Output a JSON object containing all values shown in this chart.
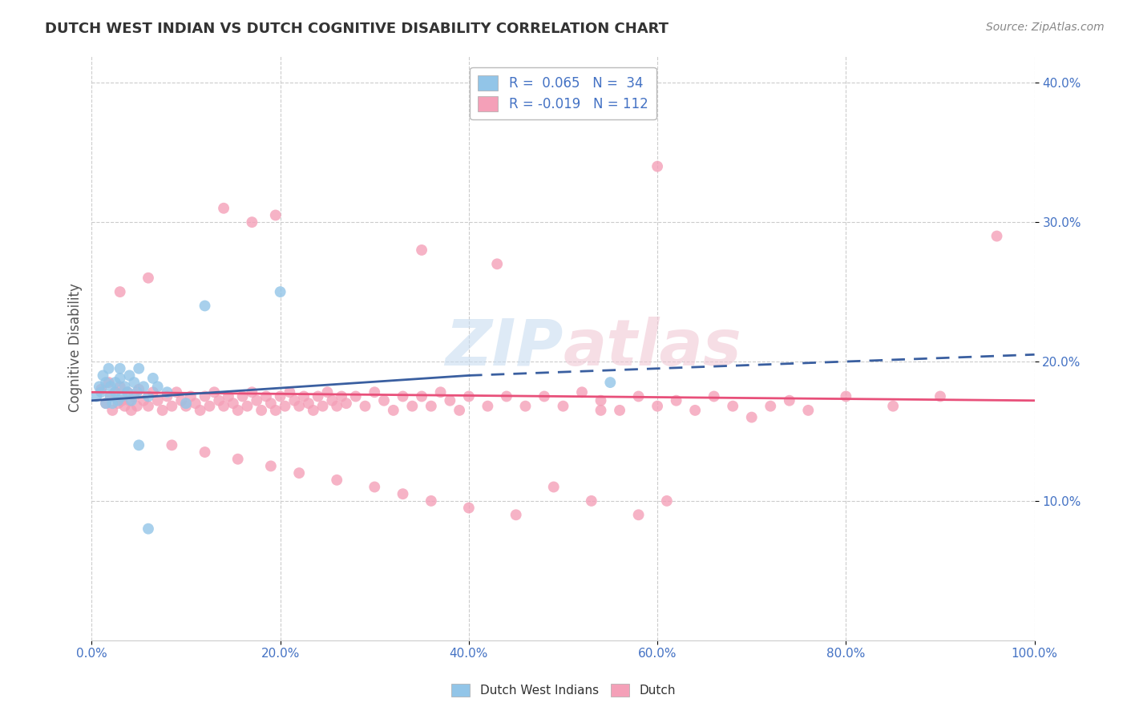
{
  "title": "DUTCH WEST INDIAN VS DUTCH COGNITIVE DISABILITY CORRELATION CHART",
  "source": "Source: ZipAtlas.com",
  "ylabel": "Cognitive Disability",
  "xlim": [
    0.0,
    1.0
  ],
  "ylim": [
    0.0,
    0.42
  ],
  "xticks": [
    0.0,
    0.2,
    0.4,
    0.6,
    0.8,
    1.0
  ],
  "xtick_labels": [
    "0.0%",
    "20.0%",
    "40.0%",
    "60.0%",
    "80.0%",
    "100.0%"
  ],
  "yticks": [
    0.1,
    0.2,
    0.3,
    0.4
  ],
  "ytick_labels": [
    "10.0%",
    "20.0%",
    "30.0%",
    "40.0%"
  ],
  "color_blue": "#92C5E8",
  "color_pink": "#F4A0B8",
  "trendline_blue": "#3A5FA0",
  "trendline_pink": "#E8507A",
  "watermark_color": "#D8E8F0",
  "watermark_color2": "#F0D8E0",
  "background_color": "#FFFFFF",
  "grid_color": "#CCCCCC",
  "title_color": "#333333",
  "axis_label_color": "#555555",
  "tick_color": "#4472C4",
  "source_color": "#888888",
  "blue_scatter": [
    [
      0.005,
      0.175
    ],
    [
      0.008,
      0.182
    ],
    [
      0.01,
      0.178
    ],
    [
      0.012,
      0.19
    ],
    [
      0.015,
      0.17
    ],
    [
      0.015,
      0.185
    ],
    [
      0.018,
      0.195
    ],
    [
      0.02,
      0.175
    ],
    [
      0.02,
      0.182
    ],
    [
      0.022,
      0.17
    ],
    [
      0.025,
      0.185
    ],
    [
      0.025,
      0.178
    ],
    [
      0.028,
      0.172
    ],
    [
      0.03,
      0.188
    ],
    [
      0.03,
      0.195
    ],
    [
      0.032,
      0.175
    ],
    [
      0.035,
      0.182
    ],
    [
      0.038,
      0.178
    ],
    [
      0.04,
      0.19
    ],
    [
      0.042,
      0.172
    ],
    [
      0.045,
      0.185
    ],
    [
      0.048,
      0.178
    ],
    [
      0.05,
      0.195
    ],
    [
      0.055,
      0.182
    ],
    [
      0.06,
      0.175
    ],
    [
      0.065,
      0.188
    ],
    [
      0.07,
      0.182
    ],
    [
      0.08,
      0.178
    ],
    [
      0.1,
      0.17
    ],
    [
      0.12,
      0.24
    ],
    [
      0.05,
      0.14
    ],
    [
      0.06,
      0.08
    ],
    [
      0.2,
      0.25
    ],
    [
      0.55,
      0.185
    ]
  ],
  "pink_scatter": [
    [
      0.01,
      0.18
    ],
    [
      0.015,
      0.17
    ],
    [
      0.018,
      0.185
    ],
    [
      0.02,
      0.175
    ],
    [
      0.022,
      0.165
    ],
    [
      0.025,
      0.178
    ],
    [
      0.028,
      0.17
    ],
    [
      0.03,
      0.182
    ],
    [
      0.032,
      0.172
    ],
    [
      0.035,
      0.168
    ],
    [
      0.038,
      0.178
    ],
    [
      0.04,
      0.172
    ],
    [
      0.042,
      0.165
    ],
    [
      0.045,
      0.175
    ],
    [
      0.048,
      0.168
    ],
    [
      0.05,
      0.18
    ],
    [
      0.055,
      0.172
    ],
    [
      0.06,
      0.168
    ],
    [
      0.065,
      0.178
    ],
    [
      0.07,
      0.172
    ],
    [
      0.075,
      0.165
    ],
    [
      0.08,
      0.175
    ],
    [
      0.085,
      0.168
    ],
    [
      0.09,
      0.178
    ],
    [
      0.095,
      0.172
    ],
    [
      0.1,
      0.168
    ],
    [
      0.105,
      0.175
    ],
    [
      0.11,
      0.17
    ],
    [
      0.115,
      0.165
    ],
    [
      0.12,
      0.175
    ],
    [
      0.125,
      0.168
    ],
    [
      0.13,
      0.178
    ],
    [
      0.135,
      0.172
    ],
    [
      0.14,
      0.168
    ],
    [
      0.145,
      0.175
    ],
    [
      0.15,
      0.17
    ],
    [
      0.155,
      0.165
    ],
    [
      0.16,
      0.175
    ],
    [
      0.165,
      0.168
    ],
    [
      0.17,
      0.178
    ],
    [
      0.175,
      0.172
    ],
    [
      0.18,
      0.165
    ],
    [
      0.185,
      0.175
    ],
    [
      0.19,
      0.17
    ],
    [
      0.195,
      0.165
    ],
    [
      0.2,
      0.175
    ],
    [
      0.205,
      0.168
    ],
    [
      0.21,
      0.178
    ],
    [
      0.215,
      0.172
    ],
    [
      0.22,
      0.168
    ],
    [
      0.225,
      0.175
    ],
    [
      0.23,
      0.17
    ],
    [
      0.235,
      0.165
    ],
    [
      0.24,
      0.175
    ],
    [
      0.245,
      0.168
    ],
    [
      0.25,
      0.178
    ],
    [
      0.255,
      0.172
    ],
    [
      0.26,
      0.168
    ],
    [
      0.265,
      0.175
    ],
    [
      0.27,
      0.17
    ],
    [
      0.28,
      0.175
    ],
    [
      0.29,
      0.168
    ],
    [
      0.3,
      0.178
    ],
    [
      0.31,
      0.172
    ],
    [
      0.32,
      0.165
    ],
    [
      0.33,
      0.175
    ],
    [
      0.34,
      0.168
    ],
    [
      0.35,
      0.175
    ],
    [
      0.36,
      0.168
    ],
    [
      0.37,
      0.178
    ],
    [
      0.38,
      0.172
    ],
    [
      0.39,
      0.165
    ],
    [
      0.4,
      0.175
    ],
    [
      0.42,
      0.168
    ],
    [
      0.44,
      0.175
    ],
    [
      0.46,
      0.168
    ],
    [
      0.48,
      0.175
    ],
    [
      0.5,
      0.168
    ],
    [
      0.52,
      0.178
    ],
    [
      0.54,
      0.172
    ],
    [
      0.56,
      0.165
    ],
    [
      0.58,
      0.175
    ],
    [
      0.6,
      0.168
    ],
    [
      0.62,
      0.172
    ],
    [
      0.64,
      0.165
    ],
    [
      0.66,
      0.175
    ],
    [
      0.68,
      0.168
    ],
    [
      0.7,
      0.16
    ],
    [
      0.72,
      0.168
    ],
    [
      0.74,
      0.172
    ],
    [
      0.76,
      0.165
    ],
    [
      0.8,
      0.175
    ],
    [
      0.85,
      0.168
    ],
    [
      0.9,
      0.175
    ],
    [
      0.96,
      0.29
    ],
    [
      0.14,
      0.31
    ],
    [
      0.17,
      0.3
    ],
    [
      0.195,
      0.305
    ],
    [
      0.35,
      0.28
    ],
    [
      0.43,
      0.27
    ],
    [
      0.6,
      0.34
    ],
    [
      0.03,
      0.25
    ],
    [
      0.06,
      0.26
    ],
    [
      0.085,
      0.14
    ],
    [
      0.12,
      0.135
    ],
    [
      0.155,
      0.13
    ],
    [
      0.19,
      0.125
    ],
    [
      0.22,
      0.12
    ],
    [
      0.26,
      0.115
    ],
    [
      0.3,
      0.11
    ],
    [
      0.33,
      0.105
    ],
    [
      0.36,
      0.1
    ],
    [
      0.4,
      0.095
    ],
    [
      0.45,
      0.09
    ],
    [
      0.49,
      0.11
    ],
    [
      0.53,
      0.1
    ],
    [
      0.58,
      0.09
    ],
    [
      0.61,
      0.1
    ],
    [
      0.54,
      0.165
    ]
  ]
}
